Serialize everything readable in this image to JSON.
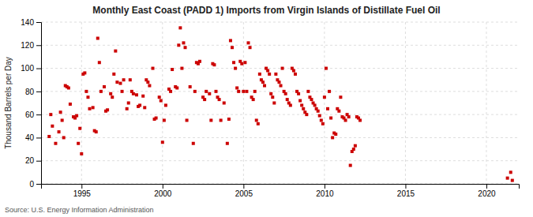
{
  "chart_data": {
    "type": "scatter",
    "title": "Monthly East Coast (PADD 1) Imports from Virgin Islands of Distillate Fuel Oil",
    "ylabel": "Thousand Barrels per Day",
    "source": "Source: U.S. Energy Information Administration",
    "color": "#CC0000",
    "marker": "square",
    "grid": true,
    "xlim": [
      1992.5,
      2022
    ],
    "ylim": [
      0,
      140
    ],
    "xticks": [
      1995,
      2000,
      2005,
      2010,
      2015,
      2020
    ],
    "yticks": [
      0,
      20,
      40,
      60,
      80,
      100,
      120,
      140
    ],
    "x": [
      1993.0,
      1993.1,
      1993.2,
      1993.4,
      1993.6,
      1993.7,
      1993.8,
      1993.9,
      1994.0,
      1994.1,
      1994.2,
      1994.3,
      1994.5,
      1994.6,
      1994.7,
      1994.8,
      1994.9,
      1995.0,
      1995.1,
      1995.2,
      1995.3,
      1995.4,
      1995.5,
      1995.7,
      1995.8,
      1995.9,
      1996.0,
      1996.1,
      1996.2,
      1996.4,
      1996.5,
      1996.6,
      1996.8,
      1996.9,
      1997.0,
      1997.1,
      1997.2,
      1997.4,
      1997.5,
      1997.6,
      1997.8,
      1997.9,
      1998.0,
      1998.1,
      1998.2,
      1998.4,
      1998.5,
      1998.6,
      1998.8,
      1998.9,
      1999.0,
      1999.1,
      1999.2,
      1999.4,
      1999.5,
      1999.6,
      1999.8,
      1999.9,
      2000.0,
      2000.1,
      2000.2,
      2000.4,
      2000.5,
      2000.6,
      2000.8,
      2000.9,
      2001.0,
      2001.1,
      2001.2,
      2001.3,
      2001.4,
      2001.5,
      2001.7,
      2001.9,
      2002.0,
      2002.1,
      2002.2,
      2002.3,
      2002.5,
      2002.6,
      2002.7,
      2002.9,
      2003.0,
      2003.1,
      2003.2,
      2003.3,
      2003.4,
      2003.5,
      2003.6,
      2003.8,
      2004.0,
      2004.1,
      2004.2,
      2004.3,
      2004.4,
      2004.5,
      2004.6,
      2004.7,
      2004.8,
      2004.9,
      2005.0,
      2005.1,
      2005.2,
      2005.3,
      2005.4,
      2005.5,
      2005.6,
      2005.7,
      2005.8,
      2005.9,
      2006.0,
      2006.1,
      2006.2,
      2006.3,
      2006.4,
      2006.5,
      2006.6,
      2006.7,
      2006.8,
      2006.9,
      2007.0,
      2007.1,
      2007.2,
      2007.3,
      2007.4,
      2007.5,
      2007.6,
      2007.7,
      2007.8,
      2007.9,
      2008.0,
      2008.1,
      2008.2,
      2008.3,
      2008.4,
      2008.5,
      2008.6,
      2008.7,
      2008.8,
      2008.9,
      2009.0,
      2009.1,
      2009.2,
      2009.3,
      2009.4,
      2009.5,
      2009.6,
      2009.7,
      2009.8,
      2009.9,
      2010.0,
      2010.1,
      2010.2,
      2010.3,
      2010.4,
      2010.5,
      2010.6,
      2010.7,
      2010.8,
      2010.9,
      2011.0,
      2011.1,
      2011.2,
      2011.3,
      2011.4,
      2011.5,
      2011.6,
      2011.7,
      2011.8,
      2011.9,
      2012.0,
      2012.1,
      2012.2,
      2021.3,
      2021.5,
      2021.6
    ],
    "values": [
      41,
      60,
      50,
      35,
      45,
      62,
      55,
      40,
      85,
      84,
      83,
      69,
      58,
      57,
      59,
      35,
      48,
      26,
      95,
      96,
      80,
      75,
      65,
      66,
      46,
      45,
      126,
      105,
      80,
      84,
      63,
      64,
      78,
      75,
      95,
      115,
      88,
      87,
      80,
      90,
      65,
      70,
      90,
      80,
      78,
      77,
      67,
      68,
      76,
      66,
      90,
      88,
      85,
      100,
      56,
      57,
      75,
      72,
      36,
      55,
      68,
      82,
      80,
      99,
      84,
      83,
      120,
      135,
      100,
      122,
      118,
      55,
      84,
      35,
      80,
      105,
      104,
      106,
      75,
      73,
      80,
      78,
      55,
      104,
      103,
      80,
      75,
      73,
      55,
      70,
      35,
      56,
      124,
      118,
      105,
      100,
      83,
      80,
      106,
      104,
      80,
      105,
      80,
      122,
      118,
      75,
      73,
      80,
      55,
      52,
      95,
      90,
      88,
      85,
      100,
      98,
      95,
      78,
      75,
      70,
      95,
      90,
      88,
      85,
      100,
      80,
      78,
      73,
      70,
      68,
      100,
      98,
      95,
      80,
      78,
      72,
      68,
      65,
      62,
      60,
      80,
      75,
      73,
      70,
      68,
      65,
      63,
      59,
      55,
      52,
      75,
      100,
      65,
      80,
      57,
      40,
      44,
      43,
      65,
      63,
      75,
      58,
      57,
      55,
      60,
      58,
      16,
      28,
      30,
      33,
      58,
      57,
      55,
      5,
      10,
      3
    ]
  }
}
